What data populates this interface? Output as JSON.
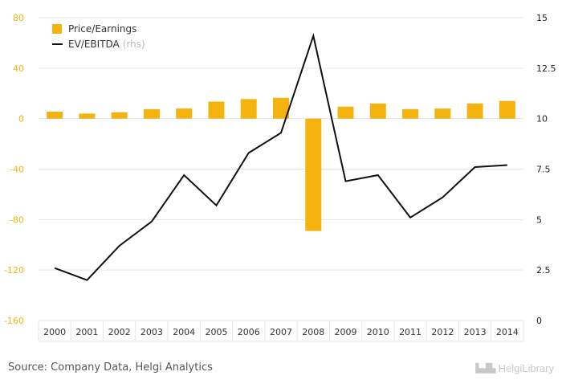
{
  "chart_data": {
    "type": "bar+line",
    "categories": [
      "2000",
      "2001",
      "2002",
      "2003",
      "2004",
      "2005",
      "2006",
      "2007",
      "2008",
      "2009",
      "2010",
      "2011",
      "2012",
      "2013",
      "2014"
    ],
    "series": [
      {
        "name": "Price/Earnings",
        "type": "bar",
        "axis": "left",
        "color": "#f5b30f",
        "values": [
          5.5,
          4.0,
          5.0,
          7.5,
          8.0,
          13.5,
          15.5,
          16.5,
          -89.0,
          9.5,
          12.0,
          7.5,
          8.0,
          12.0,
          14.0
        ]
      },
      {
        "name": "EV/EBITDA",
        "name_suffix": "(rhs)",
        "type": "line",
        "axis": "right",
        "color": "#111111",
        "values": [
          2.6,
          2.0,
          3.7,
          4.9,
          7.2,
          5.7,
          8.3,
          9.3,
          14.1,
          6.9,
          7.2,
          5.1,
          6.1,
          7.6,
          7.7
        ]
      }
    ],
    "y_left": {
      "min": -160,
      "max": 80,
      "ticks": [
        "80",
        "40",
        "0",
        "-40",
        "-80",
        "-120",
        "-160"
      ],
      "tick_values": [
        80,
        40,
        0,
        -40,
        -80,
        -120,
        -160
      ],
      "color": "#f5b30f"
    },
    "y_right": {
      "min": 0,
      "max": 15,
      "ticks": [
        "15",
        "12.5",
        "10",
        "7.5",
        "5",
        "2.5",
        "0"
      ],
      "tick_values": [
        15,
        12.5,
        10,
        7.5,
        5,
        2.5,
        0
      ],
      "color": "#222222"
    },
    "grid": true,
    "legend_position": "top-left"
  },
  "footer": {
    "source": "Source: Company Data, Helgi Analytics",
    "brand": "HelgiLibrary",
    "brand_logo_icon": "city-skyline-icon"
  }
}
